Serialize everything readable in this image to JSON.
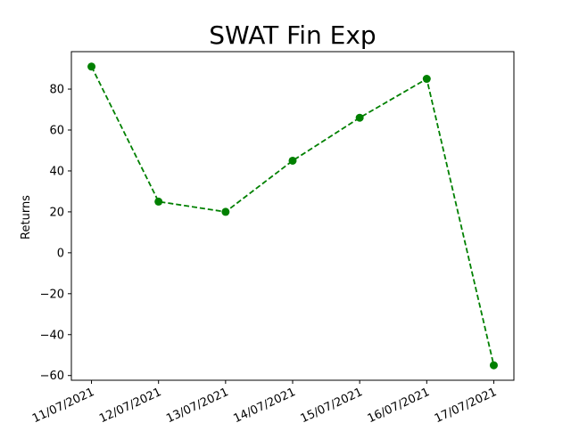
{
  "chart_data": {
    "type": "line",
    "title": "SWAT Fin Exp",
    "xlabel": "",
    "ylabel": "Returns",
    "categories": [
      "11/07/2021",
      "12/07/2021",
      "13/07/2021",
      "14/07/2021",
      "15/07/2021",
      "16/07/2021",
      "17/07/2021"
    ],
    "series": [
      {
        "values": [
          91,
          25,
          20,
          45,
          66,
          85,
          -55
        ],
        "color": "#008000",
        "line_style": "dashed",
        "marker": "circle"
      }
    ],
    "yticks": [
      -60,
      -40,
      -20,
      0,
      20,
      40,
      60,
      80
    ],
    "ylim": [
      -62.3,
      98.3
    ],
    "grid": false,
    "legend": "none"
  }
}
